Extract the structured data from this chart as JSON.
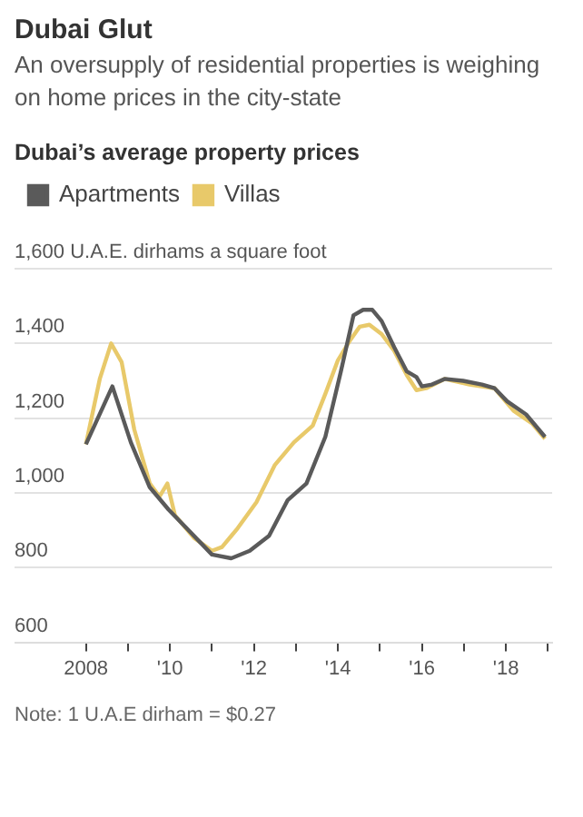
{
  "chart_data": {
    "type": "line",
    "title": "Dubai Glut",
    "subtitle": "An oversupply of residential properties is weighing on home prices in the city-state",
    "annotations": [
      "Dubai’s average property prices",
      "Note: 1 U.A.E dirham = $0.27"
    ],
    "series": [
      {
        "name": "Apartments",
        "color": "#5a5a5a",
        "x": [
          2008.0,
          2008.63,
          2009.07,
          2009.52,
          2009.97,
          2010.4,
          2011.0,
          2011.46,
          2011.9,
          2012.36,
          2012.8,
          2013.25,
          2013.7,
          2014.07,
          2014.37,
          2014.6,
          2014.82,
          2015.04,
          2015.34,
          2015.64,
          2015.87,
          2016.0,
          2016.24,
          2016.54,
          2016.98,
          2017.43,
          2017.73,
          2018.03,
          2018.48,
          2018.93
        ],
        "values": [
          1130,
          1285,
          1135,
          1015,
          955,
          905,
          835,
          825,
          845,
          885,
          980,
          1025,
          1150,
          1325,
          1475,
          1490,
          1490,
          1460,
          1390,
          1325,
          1310,
          1285,
          1290,
          1305,
          1300,
          1290,
          1280,
          1245,
          1210,
          1150
        ]
      },
      {
        "name": "Villas",
        "color": "#e8c96a",
        "x": [
          2008.0,
          2008.33,
          2008.6,
          2008.85,
          2009.15,
          2009.52,
          2009.75,
          2009.94,
          2010.12,
          2010.57,
          2011.0,
          2011.24,
          2011.61,
          2012.06,
          2012.5,
          2012.95,
          2013.4,
          2013.7,
          2014.0,
          2014.3,
          2014.52,
          2014.75,
          2015.04,
          2015.34,
          2015.64,
          2015.87,
          2016.1,
          2016.54,
          2017.13,
          2017.73,
          2018.18,
          2018.63,
          2018.93
        ],
        "values": [
          1130,
          1305,
          1400,
          1350,
          1170,
          1025,
          990,
          1025,
          940,
          880,
          845,
          855,
          905,
          975,
          1075,
          1135,
          1180,
          1265,
          1355,
          1410,
          1445,
          1450,
          1425,
          1380,
          1315,
          1275,
          1280,
          1305,
          1290,
          1280,
          1220,
          1185,
          1145
        ]
      }
    ],
    "xlim": [
      2006.3,
      2019.1
    ],
    "xticks": [
      2008,
      {
        "value": 2009,
        "label": null
      },
      {
        "value": 2010,
        "label": "'10"
      },
      {
        "value": 2011,
        "label": null
      },
      {
        "value": 2012,
        "label": "'12"
      },
      {
        "value": 2013,
        "label": null
      },
      {
        "value": 2014,
        "label": "'14"
      },
      {
        "value": 2015,
        "label": null
      },
      {
        "value": 2016,
        "label": "'16"
      },
      {
        "value": 2017,
        "label": null
      },
      {
        "value": 2018,
        "label": "'18"
      },
      {
        "value": 2019,
        "label": null
      }
    ],
    "ylim": [
      600,
      1600
    ],
    "yticks": [
      600,
      800,
      {
        "value": 1000,
        "label": "1,000"
      },
      {
        "value": 1200,
        "label": "1,200"
      },
      {
        "value": 1400,
        "label": "1,400"
      },
      {
        "value": 1600,
        "label": "1,600 U.A.E. dirhams a square foot"
      }
    ],
    "grid": "y",
    "legend": "top left",
    "marker": "none",
    "line_style": "solid"
  }
}
